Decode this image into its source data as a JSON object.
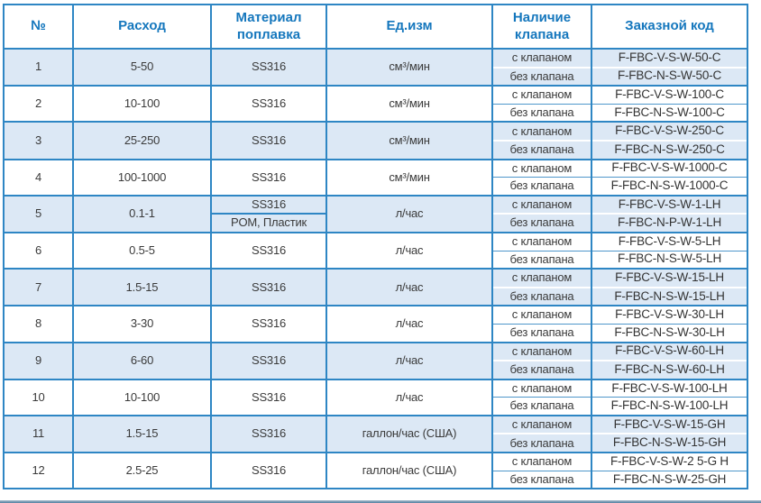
{
  "page": {
    "border_color": "#2e86c4",
    "header_text_color": "#1577bd",
    "shaded_row_color": "#dce8f5",
    "bottom_bar_color": "#4f7da0"
  },
  "table": {
    "columns": [
      {
        "label": "№"
      },
      {
        "label": "Расход"
      },
      {
        "label": "Материал поплавка"
      },
      {
        "label": "Ед.изм"
      },
      {
        "label": "Наличие клапана"
      },
      {
        "label": "Заказной код"
      }
    ],
    "rows": [
      {
        "num": "1",
        "flow": "5-50",
        "materials": [
          "SS316"
        ],
        "unit": "см³/мин",
        "variants": [
          {
            "valve": "с клапаном",
            "code": "F-FBC-V-S-W-50-C"
          },
          {
            "valve": "без клапана",
            "code": "F-FBC-N-S-W-50-C"
          }
        ]
      },
      {
        "num": "2",
        "flow": "10-100",
        "materials": [
          "SS316"
        ],
        "unit": "см³/мин",
        "variants": [
          {
            "valve": "с клапаном",
            "code": "F-FBC-V-S-W-100-C"
          },
          {
            "valve": "без клапана",
            "code": "F-FBC-N-S-W-100-C"
          }
        ]
      },
      {
        "num": "3",
        "flow": "25-250",
        "materials": [
          "SS316"
        ],
        "unit": "см³/мин",
        "variants": [
          {
            "valve": "с клапаном",
            "code": "F-FBC-V-S-W-250-C"
          },
          {
            "valve": "без клапана",
            "code": "F-FBC-N-S-W-250-C"
          }
        ]
      },
      {
        "num": "4",
        "flow": "100-1000",
        "materials": [
          "SS316"
        ],
        "unit": "см³/мин",
        "variants": [
          {
            "valve": "с клапаном",
            "code": "F-FBC-V-S-W-1000-C"
          },
          {
            "valve": "без клапана",
            "code": "F-FBC-N-S-W-1000-C"
          }
        ]
      },
      {
        "num": "5",
        "flow": "0.1-1",
        "materials": [
          "SS316",
          "POM, Пластик"
        ],
        "unit": "л/час",
        "variants": [
          {
            "valve": "с клапаном",
            "code": "F-FBC-V-S-W-1-LH"
          },
          {
            "valve": "без клапана",
            "code": "F-FBC-N-P-W-1-LH"
          }
        ]
      },
      {
        "num": "6",
        "flow": "0.5-5",
        "materials": [
          "SS316"
        ],
        "unit": "л/час",
        "variants": [
          {
            "valve": "с клапаном",
            "code": "F-FBC-V-S-W-5-LH"
          },
          {
            "valve": "без клапана",
            "code": "F-FBC-N-S-W-5-LH"
          }
        ]
      },
      {
        "num": "7",
        "flow": "1.5-15",
        "materials": [
          "SS316"
        ],
        "unit": "л/час",
        "variants": [
          {
            "valve": "с клапаном",
            "code": "F-FBC-V-S-W-15-LH"
          },
          {
            "valve": "без клапана",
            "code": "F-FBC-N-S-W-15-LH"
          }
        ]
      },
      {
        "num": "8",
        "flow": "3-30",
        "materials": [
          "SS316"
        ],
        "unit": "л/час",
        "variants": [
          {
            "valve": "с клапаном",
            "code": "F-FBC-V-S-W-30-LH"
          },
          {
            "valve": "без клапана",
            "code": "F-FBC-N-S-W-30-LH"
          }
        ]
      },
      {
        "num": "9",
        "flow": "6-60",
        "materials": [
          "SS316"
        ],
        "unit": "л/час",
        "variants": [
          {
            "valve": "с клапаном",
            "code": "F-FBC-V-S-W-60-LH"
          },
          {
            "valve": "без клапана",
            "code": "F-FBC-N-S-W-60-LH"
          }
        ]
      },
      {
        "num": "10",
        "flow": "10-100",
        "materials": [
          "SS316"
        ],
        "unit": "л/час",
        "variants": [
          {
            "valve": "с клапаном",
            "code": "F-FBC-V-S-W-100-LH"
          },
          {
            "valve": "без клапана",
            "code": "F-FBC-N-S-W-100-LH"
          }
        ]
      },
      {
        "num": "11",
        "flow": "1.5-15",
        "materials": [
          "SS316"
        ],
        "unit": "галлон/час (США)",
        "variants": [
          {
            "valve": "с клапаном",
            "code": "F-FBC-V-S-W-15-GH"
          },
          {
            "valve": "без клапана",
            "code": "F-FBC-N-S-W-15-GH"
          }
        ]
      },
      {
        "num": "12",
        "flow": "2.5-25",
        "materials": [
          "SS316"
        ],
        "unit": "галлон/час (США)",
        "variants": [
          {
            "valve": "с клапаном",
            "code": "F-FBC-V-S-W-2 5-G H"
          },
          {
            "valve": "без клапана",
            "code": "F-FBC-N-S-W-25-GH"
          }
        ]
      }
    ]
  }
}
